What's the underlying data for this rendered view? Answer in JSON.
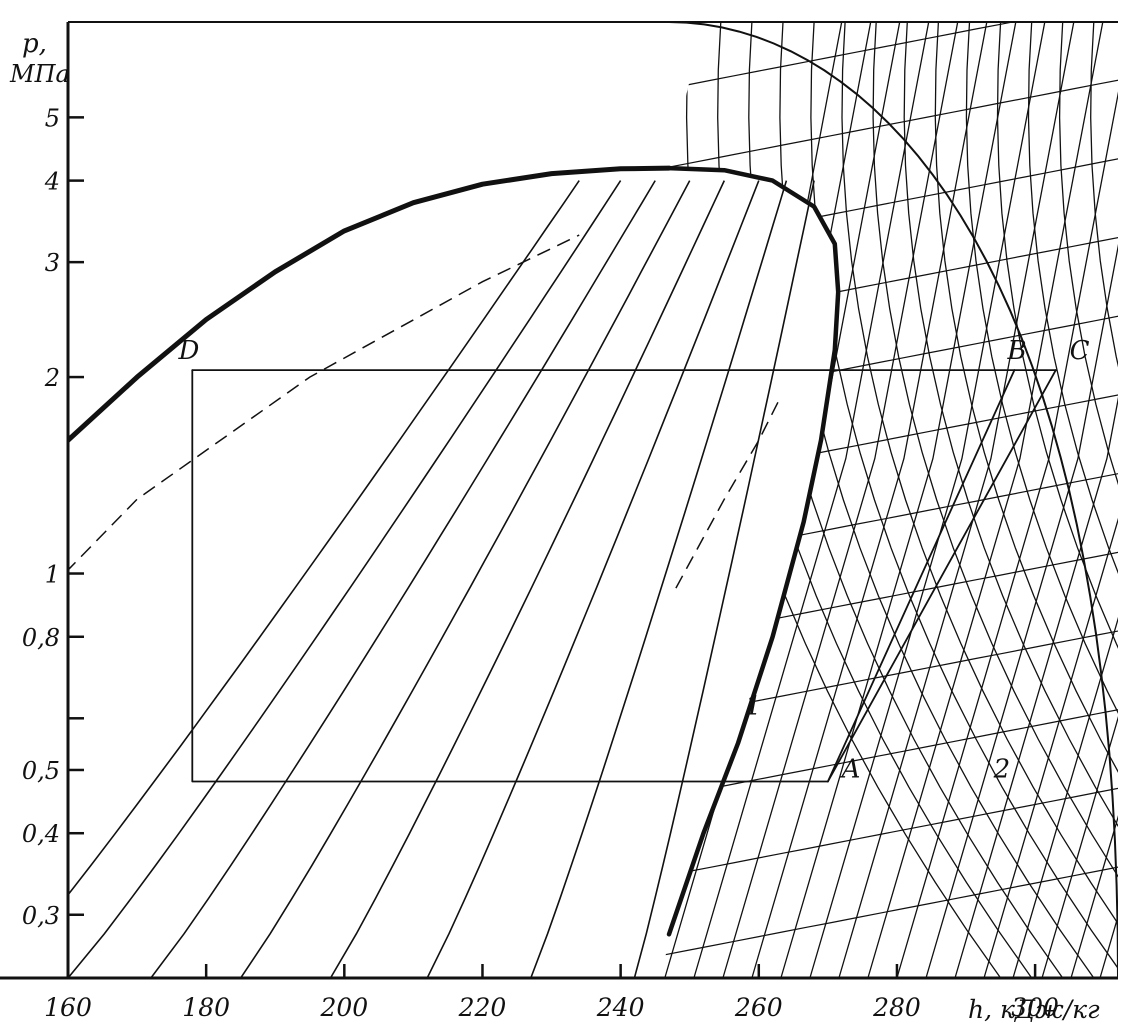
{
  "chart_data": {
    "type": "line",
    "title": "",
    "xlabel": "h, кДж/кг",
    "ylabel": "p,\nМПа",
    "ylabel_top": "p,",
    "ylabel_bottom": "МПа",
    "xlim": [
      160,
      312
    ],
    "ylim": [
      0.24,
      7.0
    ],
    "y_scale": "log",
    "grid": false,
    "x_ticks": [
      {
        "value": 160,
        "label": "160"
      },
      {
        "value": 180,
        "label": "180"
      },
      {
        "value": 200,
        "label": "200"
      },
      {
        "value": 220,
        "label": "220"
      },
      {
        "value": 240,
        "label": "240"
      },
      {
        "value": 260,
        "label": "260"
      },
      {
        "value": 280,
        "label": "280"
      },
      {
        "value": 300,
        "label": "300"
      }
    ],
    "y_ticks": [
      {
        "value": 5,
        "label": "5"
      },
      {
        "value": 4,
        "label": "4"
      },
      {
        "value": 3,
        "label": "3"
      },
      {
        "value": 2,
        "label": "2"
      },
      {
        "value": 1,
        "label": "1"
      },
      {
        "value": 0.8,
        "label": "0,8"
      },
      {
        "value": 0.6,
        "label": ""
      },
      {
        "value": 0.5,
        "label": "0,5"
      },
      {
        "value": 0.4,
        "label": "0,4"
      },
      {
        "value": 0.3,
        "label": "0,3"
      }
    ],
    "series": [
      {
        "role": "saturated-liquid",
        "points": [
          [
            153,
            1.3
          ],
          [
            160,
            1.6
          ],
          [
            170,
            2.0
          ],
          [
            180,
            2.45
          ],
          [
            190,
            2.9
          ],
          [
            200,
            3.35
          ],
          [
            210,
            3.7
          ],
          [
            220,
            3.95
          ],
          [
            230,
            4.1
          ],
          [
            240,
            4.17
          ],
          [
            247,
            4.18
          ]
        ]
      },
      {
        "role": "saturated-vapor",
        "points": [
          [
            247,
            4.18
          ],
          [
            255,
            4.15
          ],
          [
            262,
            4.0
          ],
          [
            268,
            3.65
          ],
          [
            271,
            3.2
          ],
          [
            271.5,
            2.7
          ],
          [
            271,
            2.2
          ],
          [
            269,
            1.6
          ],
          [
            266.5,
            1.2
          ],
          [
            262,
            0.8
          ],
          [
            257,
            0.55
          ],
          [
            252,
            0.4
          ],
          [
            247,
            0.28
          ]
        ]
      },
      {
        "role": "cycle-D-A",
        "points": [
          [
            178,
            2.05
          ],
          [
            178,
            0.48
          ],
          [
            270,
            0.48
          ]
        ]
      },
      {
        "role": "cycle-D-C",
        "points": [
          [
            178,
            2.05
          ],
          [
            303,
            2.05
          ]
        ]
      },
      {
        "role": "cycle-A-B",
        "points": [
          [
            270,
            0.48
          ],
          [
            297,
            2.05
          ]
        ]
      },
      {
        "role": "cycle-A-C",
        "points": [
          [
            270,
            0.48
          ],
          [
            303,
            2.05
          ]
        ]
      }
    ],
    "annotations": [
      {
        "text": "D",
        "x": 176,
        "y": 2.1
      },
      {
        "text": "B",
        "x": 296,
        "y": 2.1
      },
      {
        "text": "C",
        "x": 305,
        "y": 2.1
      },
      {
        "text": "A",
        "x": 272,
        "y": 0.48
      },
      {
        "text": "1",
        "x": 258,
        "y": 0.6
      },
      {
        "text": "2",
        "x": 294,
        "y": 0.48
      }
    ]
  }
}
